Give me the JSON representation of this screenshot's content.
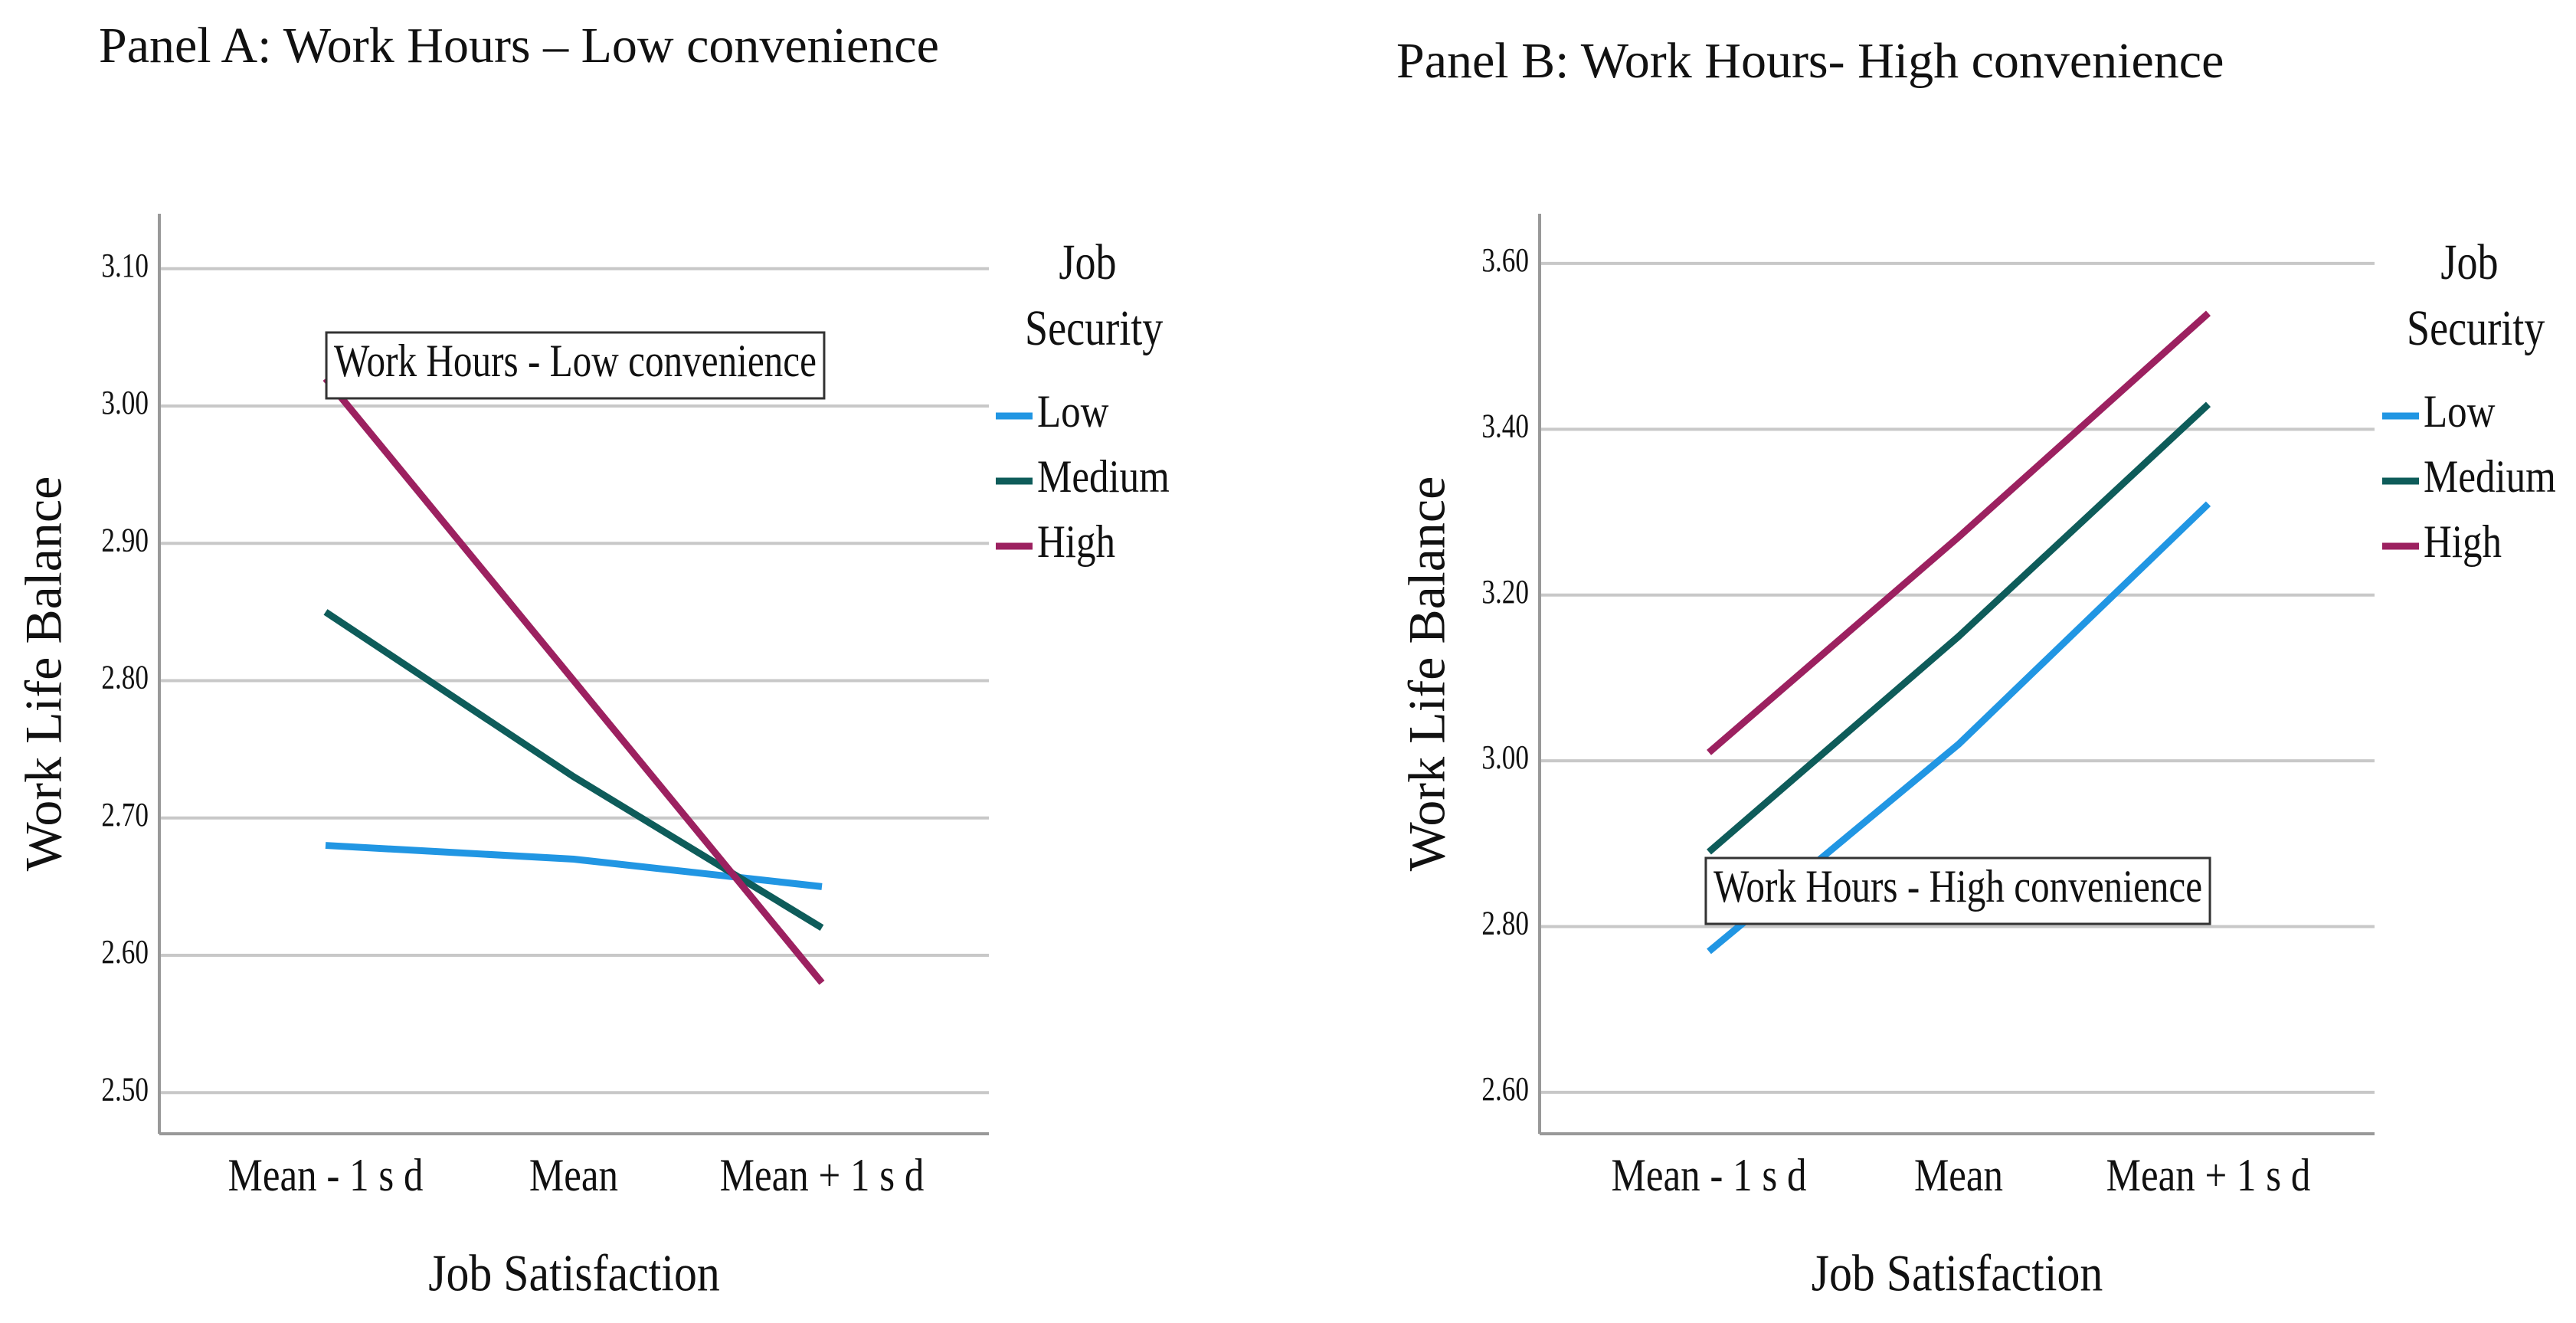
{
  "chart_data": [
    {
      "type": "line",
      "title": "Panel A: Work Hours – Low convenience",
      "x_label": "Job Satisfaction",
      "y_label": "Work Life Balance",
      "categories": [
        "Mean - 1 s d",
        "Mean",
        "Mean + 1 s d"
      ],
      "legend_title": "Job Security",
      "annotation": "Work Hours - Low convenience",
      "series": [
        {
          "name": "Low",
          "color": "#2196e3",
          "values": [
            2.68,
            2.67,
            2.65
          ]
        },
        {
          "name": "Medium",
          "color": "#0e5c5a",
          "values": [
            2.85,
            2.73,
            2.62
          ]
        },
        {
          "name": "High",
          "color": "#9c2160",
          "values": [
            3.02,
            2.8,
            2.58
          ]
        }
      ],
      "ylim": [
        2.47,
        3.14
      ],
      "yticks": [
        {
          "value": 2.5,
          "label": "2.50"
        },
        {
          "value": 2.6,
          "label": "2.60"
        },
        {
          "value": 2.7,
          "label": "2.70"
        },
        {
          "value": 2.8,
          "label": "2.80"
        },
        {
          "value": 2.9,
          "label": "2.90"
        },
        {
          "value": 3.0,
          "label": "3.00"
        },
        {
          "value": 3.1,
          "label": "3.10"
        }
      ],
      "grid": true
    },
    {
      "type": "line",
      "title": "Panel B: Work Hours- High convenience",
      "x_label": "Job Satisfaction",
      "y_label": "Work Life Balance",
      "categories": [
        "Mean - 1 s d",
        "Mean",
        "Mean + 1 s d"
      ],
      "legend_title": "Job Security",
      "annotation": "Work Hours - High convenience",
      "series": [
        {
          "name": "Low",
          "color": "#2196e3",
          "values": [
            2.77,
            3.02,
            3.31
          ]
        },
        {
          "name": "Medium",
          "color": "#0e5c5a",
          "values": [
            2.89,
            3.15,
            3.43
          ]
        },
        {
          "name": "High",
          "color": "#9c2160",
          "values": [
            3.01,
            3.27,
            3.54
          ]
        }
      ],
      "ylim": [
        2.55,
        3.66
      ],
      "yticks": [
        {
          "value": 2.6,
          "label": "2.60"
        },
        {
          "value": 2.8,
          "label": "2.80"
        },
        {
          "value": 3.0,
          "label": "3.00"
        },
        {
          "value": 3.2,
          "label": "3.20"
        },
        {
          "value": 3.4,
          "label": "3.40"
        },
        {
          "value": 3.6,
          "label": "3.60"
        }
      ],
      "grid": true
    }
  ]
}
